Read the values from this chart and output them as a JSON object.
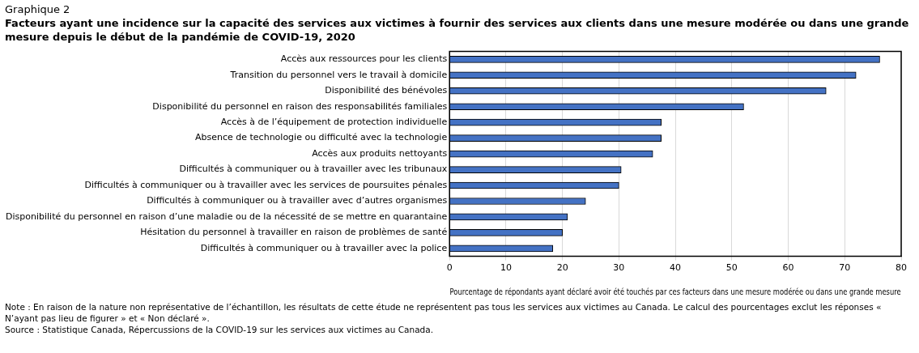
{
  "chart_data": {
    "type": "bar",
    "orientation": "horizontal",
    "title": "Graphique 2",
    "subtitle": "Facteurs ayant une incidence sur la capacité des services aux victimes à fournir des services aux clients dans une mesure modérée ou dans une grande mesure depuis le début de la pandémie de COVID-19, 2020",
    "xlabel": "Pourcentage de répondants ayant déclaré avoir été touchés par ces facteurs dans une mesure modérée ou dans une grande mesure",
    "categories": [
      "Accès aux ressources pour les clients",
      "Transition du personnel vers le travail à domicile",
      "Disponibilité des bénévoles",
      "Disponibilité du personnel en raison des responsabilités familiales",
      "Accès à de l’équipement de protection individuelle",
      "Absence de technologie ou difficulté avec la technologie",
      "Accès aux produits nettoyants",
      "Difficultés à communiquer ou à travailler avec les tribunaux",
      "Difficultés à communiquer ou à travailler avec les services de poursuites pénales",
      "Difficultés à communiquer ou à travailler avec d’autres organismes",
      "Disponibilité du personnel en raison d’une maladie ou de la nécessité de se mettre en quarantaine",
      "Hésitation du personnel à travailler en raison de problèmes de santé",
      "Difficultés à communiquer ou à travailler avec la police"
    ],
    "values": [
      76.2,
      72.0,
      66.7,
      52.1,
      37.5,
      37.5,
      36.0,
      30.4,
      30.0,
      24.1,
      20.9,
      20.0,
      18.3
    ],
    "color": "#4472c4",
    "xlim": [
      0,
      80
    ],
    "xticks": [
      0,
      10,
      20,
      30,
      40,
      50,
      60,
      70,
      80
    ],
    "grid": "x",
    "legend": false,
    "annotations": [
      "Note : En raison de la nature non représentative de l’échantillon, les résultats de cette étude ne représentent pas tous les services aux victimes au Canada. Le calcul des pourcentages exclut les réponses « N’ayant pas lieu de figurer » et « Non déclaré ».",
      "Source : Statistique Canada, Répercussions de la COVID-19 sur les services aux victimes au Canada."
    ]
  }
}
